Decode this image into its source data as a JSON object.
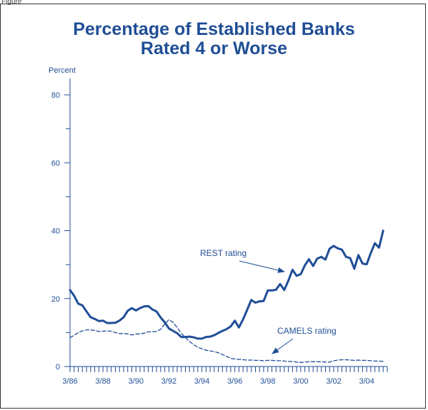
{
  "figure": {
    "corner_label": "Figure"
  },
  "chart_data": {
    "type": "line",
    "title": "Percentage of Established Banks Rated 4 or Worse",
    "title_lines": [
      "Percentage of Established Banks",
      "Rated 4 or Worse"
    ],
    "ylabel": "Percent",
    "ylim": [
      0,
      80
    ],
    "yticks": [
      0,
      20,
      40,
      60,
      80
    ],
    "x_ticklabels": [
      "3/86",
      "3/88",
      "3/90",
      "3/92",
      "3/94",
      "3/96",
      "3/98",
      "3/00",
      "3/02",
      "3/04"
    ],
    "x_range_years": [
      1986.0,
      2005.25
    ],
    "grid": false,
    "colors": {
      "series": "#1f4e96",
      "text": "#1f4e96"
    },
    "series": [
      {
        "name": "REST rating",
        "style": "solid",
        "x": [
          1986.0,
          1986.25,
          1986.5,
          1986.75,
          1987.0,
          1987.25,
          1987.5,
          1987.75,
          1988.0,
          1988.25,
          1988.5,
          1988.75,
          1989.0,
          1989.25,
          1989.5,
          1989.75,
          1990.0,
          1990.25,
          1990.5,
          1990.75,
          1991.0,
          1991.25,
          1991.5,
          1991.75,
          1992.0,
          1992.25,
          1992.5,
          1992.75,
          1993.0,
          1993.25,
          1993.5,
          1993.75,
          1994.0,
          1994.25,
          1994.5,
          1994.75,
          1995.0,
          1995.25,
          1995.5,
          1995.75,
          1996.0,
          1996.25,
          1996.5,
          1996.75,
          1997.0,
          1997.25,
          1997.5,
          1997.75,
          1998.0,
          1998.25,
          1998.5,
          1998.75,
          1999.0,
          1999.25,
          1999.5,
          1999.75,
          2000.0,
          2000.25,
          2000.5,
          2000.75,
          2001.0,
          2001.25,
          2001.5,
          2001.75,
          2002.0,
          2002.25,
          2002.5,
          2002.75,
          2003.0,
          2003.25,
          2003.5,
          2003.75,
          2004.0,
          2004.25,
          2004.5,
          2004.75,
          2005.0
        ],
        "values": [
          22.5,
          20.8,
          18.5,
          18.0,
          16.2,
          14.5,
          14.0,
          13.4,
          13.5,
          12.8,
          12.8,
          12.9,
          13.5,
          14.5,
          16.4,
          17.2,
          16.5,
          17.2,
          17.7,
          17.8,
          16.8,
          16.2,
          14.4,
          13.0,
          11.2,
          10.5,
          9.8,
          8.7,
          8.7,
          8.8,
          8.6,
          8.2,
          8.2,
          8.7,
          8.8,
          9.2,
          9.9,
          10.5,
          11.0,
          11.8,
          13.5,
          11.5,
          13.9,
          16.7,
          19.6,
          18.8,
          19.2,
          19.3,
          22.4,
          22.4,
          22.6,
          24.3,
          22.5,
          25.3,
          28.5,
          26.7,
          27.2,
          29.8,
          31.6,
          29.6,
          31.8,
          32.3,
          31.5,
          34.7,
          35.5,
          34.8,
          34.4,
          32.3,
          31.9,
          28.8,
          32.8,
          30.3,
          30.1,
          33.4,
          36.3,
          35.0,
          40.0
        ]
      },
      {
        "name": "CAMELS rating",
        "style": "dashed",
        "x": [
          1986.0,
          1986.25,
          1986.5,
          1986.75,
          1987.0,
          1987.25,
          1987.5,
          1987.75,
          1988.0,
          1988.25,
          1988.5,
          1988.75,
          1989.0,
          1989.25,
          1989.5,
          1989.75,
          1990.0,
          1990.25,
          1990.5,
          1990.75,
          1991.0,
          1991.25,
          1991.5,
          1991.75,
          1992.0,
          1992.25,
          1992.5,
          1992.75,
          1993.0,
          1993.25,
          1993.5,
          1993.75,
          1994.0,
          1994.25,
          1994.5,
          1994.75,
          1995.0,
          1995.25,
          1995.5,
          1995.75,
          1996.0,
          1996.25,
          1996.5,
          1996.75,
          1997.0,
          1997.25,
          1997.5,
          1997.75,
          1998.0,
          1998.25,
          1998.5,
          1998.75,
          1999.0,
          1999.25,
          1999.5,
          1999.75,
          2000.0,
          2000.25,
          2000.5,
          2000.75,
          2001.0,
          2001.25,
          2001.5,
          2001.75,
          2002.0,
          2002.25,
          2002.5,
          2002.75,
          2003.0,
          2003.25,
          2003.5,
          2003.75,
          2004.0,
          2004.25,
          2004.5,
          2004.75,
          2005.0
        ],
        "values": [
          8.5,
          9.2,
          10.0,
          10.5,
          10.8,
          10.8,
          10.6,
          10.3,
          10.4,
          10.5,
          10.4,
          10.0,
          9.7,
          9.7,
          9.6,
          9.3,
          9.6,
          9.6,
          9.8,
          10.2,
          10.2,
          10.3,
          11.0,
          12.5,
          13.8,
          13.0,
          11.5,
          9.8,
          8.5,
          7.4,
          6.4,
          5.7,
          5.2,
          4.8,
          4.6,
          4.4,
          4.0,
          3.5,
          3.0,
          2.4,
          2.2,
          2.1,
          2.0,
          1.9,
          1.9,
          1.8,
          1.8,
          1.7,
          1.8,
          1.8,
          1.7,
          1.7,
          1.6,
          1.5,
          1.5,
          1.3,
          1.2,
          1.3,
          1.4,
          1.4,
          1.4,
          1.4,
          1.3,
          1.3,
          1.7,
          1.9,
          2.0,
          2.0,
          1.9,
          1.8,
          1.9,
          1.8,
          1.8,
          1.7,
          1.6,
          1.6,
          1.5
        ]
      }
    ],
    "annotations": [
      {
        "text": "REST rating",
        "series": "REST rating"
      },
      {
        "text": "CAMELS rating",
        "series": "CAMELS rating"
      }
    ]
  }
}
